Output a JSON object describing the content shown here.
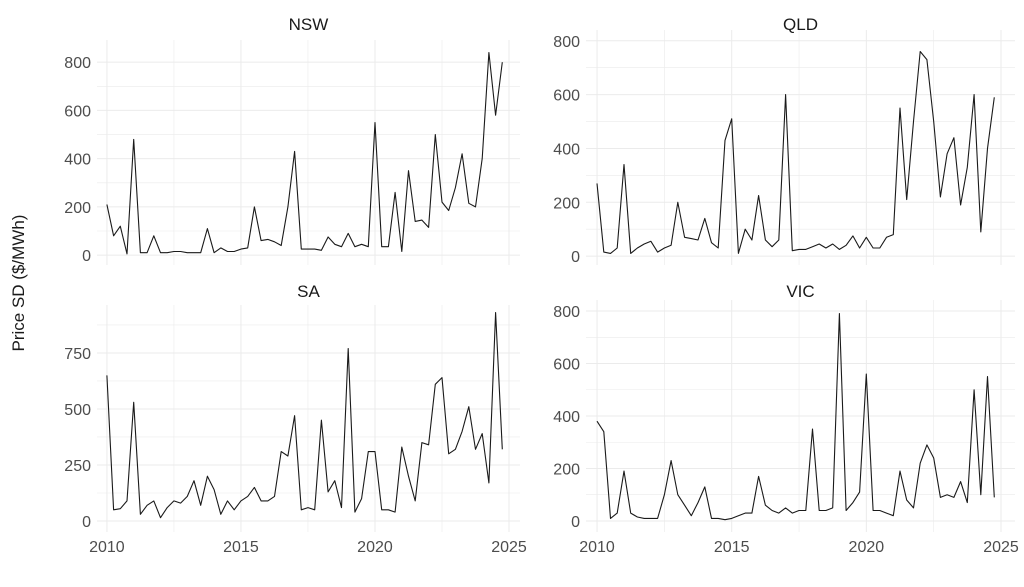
{
  "chart_data": {
    "type": "line",
    "ylabel": "Price SD ($/MWh)",
    "xlabel": "",
    "grid": true,
    "x_start": 2010,
    "x_step": 0.25,
    "x_ticks": [
      "2010",
      "2015",
      "2020",
      "2025"
    ],
    "panels": [
      {
        "title": "NSW",
        "ylim": [
          -41,
          892
        ],
        "y_ticks": [
          "0",
          "200",
          "400",
          "600",
          "800"
        ],
        "y_tick_values": [
          0,
          200,
          400,
          600,
          800
        ],
        "values": [
          210,
          80,
          120,
          5,
          480,
          10,
          10,
          80,
          10,
          10,
          15,
          15,
          10,
          10,
          10,
          110,
          10,
          30,
          15,
          15,
          25,
          30,
          200,
          60,
          65,
          55,
          40,
          200,
          430,
          25,
          25,
          25,
          20,
          75,
          45,
          35,
          90,
          35,
          45,
          35,
          550,
          35,
          35,
          260,
          15,
          350,
          140,
          145,
          115,
          500,
          220,
          185,
          280,
          420,
          215,
          200,
          400,
          840,
          580,
          800
        ]
      },
      {
        "title": "QLD",
        "ylim": [
          -33,
          840
        ],
        "y_ticks": [
          "0",
          "200",
          "400",
          "600",
          "800"
        ],
        "y_tick_values": [
          0,
          200,
          400,
          600,
          800
        ],
        "values": [
          270,
          15,
          10,
          30,
          340,
          10,
          30,
          45,
          55,
          15,
          30,
          40,
          200,
          70,
          65,
          60,
          140,
          50,
          30,
          430,
          510,
          10,
          100,
          60,
          225,
          60,
          35,
          60,
          600,
          20,
          25,
          25,
          35,
          45,
          30,
          45,
          25,
          40,
          75,
          30,
          70,
          30,
          30,
          70,
          80,
          550,
          210,
          500,
          760,
          730,
          500,
          220,
          380,
          440,
          190,
          330,
          600,
          90,
          400,
          590
        ]
      },
      {
        "title": "SA",
        "ylim": [
          -49,
          964
        ],
        "y_ticks": [
          "0",
          "250",
          "500",
          "750"
        ],
        "y_tick_values": [
          0,
          250,
          500,
          750
        ],
        "values": [
          650,
          50,
          55,
          90,
          530,
          30,
          70,
          90,
          15,
          60,
          90,
          80,
          110,
          180,
          70,
          200,
          140,
          30,
          90,
          50,
          90,
          110,
          150,
          90,
          90,
          110,
          310,
          290,
          470,
          50,
          60,
          50,
          450,
          130,
          180,
          60,
          770,
          40,
          100,
          310,
          310,
          50,
          50,
          40,
          330,
          200,
          90,
          350,
          340,
          610,
          640,
          300,
          320,
          400,
          510,
          320,
          390,
          170,
          930,
          320
        ]
      },
      {
        "title": "VIC",
        "ylim": [
          -42,
          842
        ],
        "y_ticks": [
          "0",
          "200",
          "400",
          "600",
          "800"
        ],
        "y_tick_values": [
          0,
          200,
          400,
          600,
          800
        ],
        "values": [
          380,
          340,
          10,
          30,
          190,
          30,
          15,
          10,
          10,
          10,
          100,
          230,
          100,
          60,
          20,
          70,
          130,
          10,
          10,
          5,
          10,
          20,
          30,
          30,
          170,
          60,
          40,
          30,
          50,
          30,
          40,
          40,
          350,
          40,
          40,
          50,
          790,
          40,
          70,
          110,
          560,
          40,
          40,
          30,
          20,
          190,
          80,
          50,
          220,
          290,
          240,
          90,
          100,
          90,
          150,
          70,
          500,
          100,
          550,
          90
        ]
      }
    ]
  },
  "colors": {
    "line": "#1a1a1a",
    "grid": "#ebebeb",
    "text": "#4d4d4d",
    "title": "#1a1a1a"
  }
}
